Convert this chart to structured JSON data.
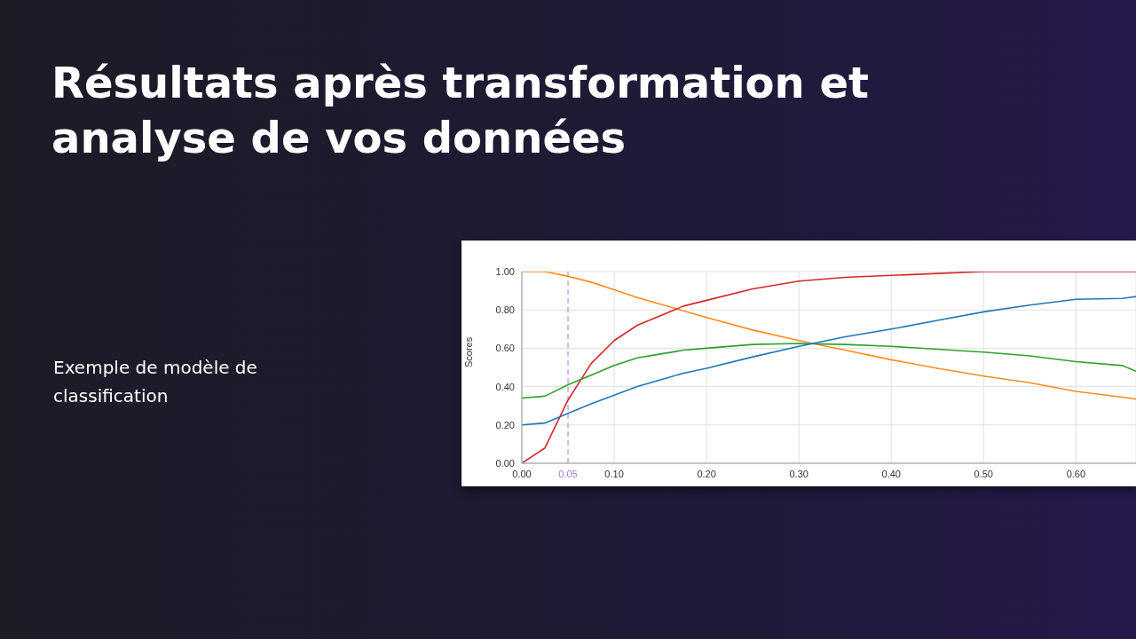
{
  "chart_data": {
    "type": "line",
    "title": "Résultats après transformation et analyse de vos données",
    "ylabel": "Scores",
    "annotations": [
      "Exemple de modèle de classification"
    ],
    "x": [
      0,
      0.025,
      0.05,
      0.075,
      0.1,
      0.125,
      0.15,
      0.175,
      0.2,
      0.25,
      0.3,
      0.35,
      0.4,
      0.45,
      0.5,
      0.55,
      0.6,
      0.65,
      0.665
    ],
    "series": [
      {
        "color": "#ff8c1a",
        "values": [
          1.0,
          1.0,
          0.975,
          0.945,
          0.905,
          0.865,
          0.83,
          0.795,
          0.76,
          0.695,
          0.64,
          0.59,
          0.54,
          0.495,
          0.455,
          0.42,
          0.375,
          0.345,
          0.335
        ]
      },
      {
        "color": "#d62728",
        "values": [
          0,
          0.08,
          0.33,
          0.52,
          0.64,
          0.72,
          0.77,
          0.82,
          0.85,
          0.91,
          0.95,
          0.97,
          0.98,
          0.99,
          1.0,
          1.0,
          1.0,
          1.0,
          1.0
        ]
      },
      {
        "color": "#2ca02c",
        "values": [
          0.34,
          0.35,
          0.41,
          0.46,
          0.51,
          0.55,
          0.57,
          0.59,
          0.6,
          0.62,
          0.625,
          0.62,
          0.61,
          0.595,
          0.58,
          0.56,
          0.53,
          0.51,
          0.48
        ]
      },
      {
        "color": "#1f77b4",
        "values": [
          0.2,
          0.21,
          0.26,
          0.31,
          0.355,
          0.4,
          0.435,
          0.47,
          0.495,
          0.555,
          0.61,
          0.66,
          0.7,
          0.745,
          0.79,
          0.825,
          0.855,
          0.86,
          0.87
        ]
      }
    ],
    "xlim": [
      0,
      0.665
    ],
    "xticks": [
      {
        "value": 0,
        "label": "0.00"
      },
      {
        "value": 0.1,
        "label": "0.10"
      },
      {
        "value": 0.2,
        "label": "0.20"
      },
      {
        "value": 0.3,
        "label": "0.30"
      },
      {
        "value": 0.4,
        "label": "0.40"
      },
      {
        "value": 0.5,
        "label": "0.50"
      },
      {
        "value": 0.6,
        "label": "0.60"
      }
    ],
    "ylim": [
      0,
      1
    ],
    "yticks": [
      {
        "value": 0,
        "label": "0.00"
      },
      {
        "value": 0.2,
        "label": "0.20"
      },
      {
        "value": 0.4,
        "label": "0.40"
      },
      {
        "value": 0.6,
        "label": "0.60"
      },
      {
        "value": 0.8,
        "label": "0.80"
      },
      {
        "value": 1,
        "label": "1.00"
      }
    ],
    "ref_lines": [
      {
        "axis": "x",
        "value": 0.05,
        "label": "0.05",
        "color": "#9c7ccc",
        "line_style": "dashed"
      }
    ],
    "grid": true,
    "legend": false,
    "marker": "none",
    "line_style": "solid"
  }
}
